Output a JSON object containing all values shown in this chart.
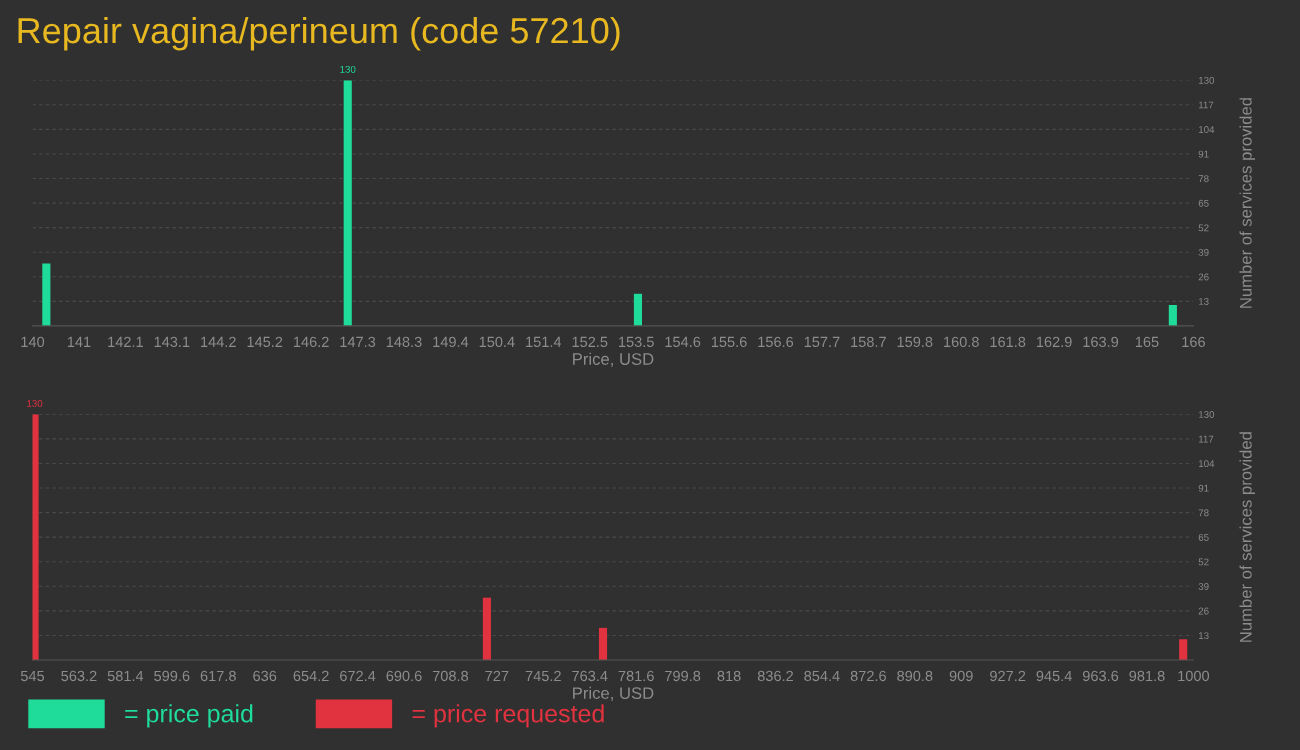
{
  "chart_data": [
    {
      "type": "bar",
      "title": "Repair vagina/perineum (code 57210)",
      "xlabel": "Price, USD",
      "ylabel": "Number of services provided",
      "series": [
        {
          "name": "= price paid",
          "color": "#1fdc9a",
          "x": [
            140.31,
            147.06,
            153.56,
            165.54
          ],
          "values": [
            33,
            130,
            17,
            11
          ],
          "value_labels": [
            null,
            "130",
            null,
            null
          ]
        }
      ],
      "xlim": [
        140,
        166
      ],
      "xticks": [
        140,
        {
          "value": 141.04,
          "label": "141"
        },
        {
          "value": 142.08,
          "label": "142.1"
        },
        {
          "value": 143.12,
          "label": "143.1"
        },
        {
          "value": 144.16,
          "label": "144.2"
        },
        {
          "value": 145.2,
          "label": "145.2"
        },
        {
          "value": 146.24,
          "label": "146.2"
        },
        {
          "value": 147.28,
          "label": "147.3"
        },
        {
          "value": 148.32,
          "label": "148.3"
        },
        {
          "value": 149.36,
          "label": "149.4"
        },
        {
          "value": 150.4,
          "label": "150.4"
        },
        {
          "value": 151.44,
          "label": "151.4"
        },
        {
          "value": 152.48,
          "label": "152.5"
        },
        {
          "value": 153.52,
          "label": "153.5"
        },
        {
          "value": 154.56,
          "label": "154.6"
        },
        {
          "value": 155.6,
          "label": "155.6"
        },
        {
          "value": 156.64,
          "label": "156.6"
        },
        {
          "value": 157.68,
          "label": "157.7"
        },
        {
          "value": 158.72,
          "label": "158.7"
        },
        {
          "value": 159.76,
          "label": "159.8"
        },
        {
          "value": 160.8,
          "label": "160.8"
        },
        {
          "value": 161.84,
          "label": "161.8"
        },
        {
          "value": 162.88,
          "label": "162.9"
        },
        {
          "value": 163.92,
          "label": "163.9"
        },
        {
          "value": 164.96,
          "label": "165"
        },
        166
      ],
      "ylim": [
        0,
        130
      ],
      "yticks": [
        13,
        26,
        39,
        52,
        65,
        78,
        91,
        104,
        117,
        130
      ],
      "grid": "y"
    },
    {
      "type": "bar",
      "xlabel": "Price, USD",
      "ylabel": "Number of services provided",
      "series": [
        {
          "name": "= price requested",
          "color": "#e0323f",
          "x": [
            545.8,
            723.1,
            768.6,
            996
          ],
          "values": [
            130,
            33,
            17,
            11
          ],
          "value_labels": [
            "130",
            null,
            null,
            null
          ]
        }
      ],
      "xlim": [
        545,
        1000
      ],
      "xticks": [
        545,
        563.2,
        581.4,
        599.6,
        617.8,
        636,
        654.2,
        672.4,
        690.6,
        708.8,
        727,
        745.2,
        763.4,
        781.6,
        799.8,
        818,
        836.2,
        854.4,
        872.6,
        890.8,
        909,
        927.2,
        945.4,
        963.6,
        981.8,
        1000
      ],
      "ylim": [
        0,
        130
      ],
      "yticks": [
        13,
        26,
        39,
        52,
        65,
        78,
        91,
        104,
        117,
        130
      ],
      "grid": "y",
      "legend": "bottom left"
    }
  ]
}
